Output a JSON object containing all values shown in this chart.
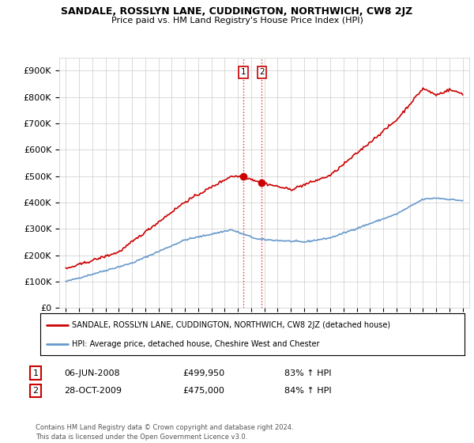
{
  "title": "SANDALE, ROSSLYN LANE, CUDDINGTON, NORTHWICH, CW8 2JZ",
  "subtitle": "Price paid vs. HM Land Registry's House Price Index (HPI)",
  "legend_line1": "SANDALE, ROSSLYN LANE, CUDDINGTON, NORTHWICH, CW8 2JZ (detached house)",
  "legend_line2": "HPI: Average price, detached house, Cheshire West and Chester",
  "point1_label": "1",
  "point1_date": "06-JUN-2008",
  "point1_price": "£499,950",
  "point1_hpi": "83% ↑ HPI",
  "point1_x": 2008.43,
  "point1_y": 499950,
  "point2_label": "2",
  "point2_date": "28-OCT-2009",
  "point2_price": "£475,000",
  "point2_hpi": "84% ↑ HPI",
  "point2_x": 2009.82,
  "point2_y": 475000,
  "footer": "Contains HM Land Registry data © Crown copyright and database right 2024.\nThis data is licensed under the Open Government Licence v3.0.",
  "red_color": "#cc0000",
  "blue_color": "#6699cc",
  "background_color": "#ffffff",
  "grid_color": "#cccccc",
  "ylim": [
    0,
    950000
  ],
  "yticks": [
    0,
    100000,
    200000,
    300000,
    400000,
    500000,
    600000,
    700000,
    800000,
    900000
  ],
  "ytick_labels": [
    "£0",
    "£100K",
    "£200K",
    "£300K",
    "£400K",
    "£500K",
    "£600K",
    "£700K",
    "£800K",
    "£900K"
  ],
  "xlim_start": 1994.5,
  "xlim_end": 2025.5
}
